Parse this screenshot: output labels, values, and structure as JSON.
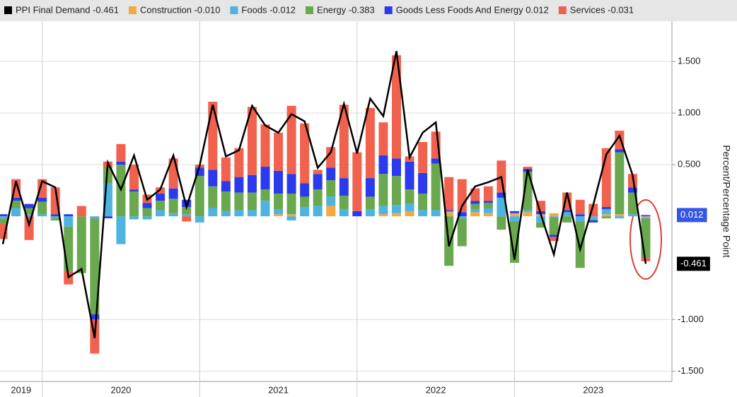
{
  "chart_data": {
    "type": "stacked-bar-line",
    "categories": [
      "2019",
      "2019",
      "2019",
      "2020",
      "2020",
      "2020",
      "2020",
      "2020",
      "2020",
      "2020",
      "2020",
      "2020",
      "2020",
      "2020",
      "2020",
      "2021",
      "2021",
      "2021",
      "2021",
      "2021",
      "2021",
      "2021",
      "2021",
      "2021",
      "2021",
      "2021",
      "2021",
      "2022",
      "2022",
      "2022",
      "2022",
      "2022",
      "2022",
      "2022",
      "2022",
      "2022",
      "2022",
      "2022",
      "2022",
      "2023",
      "2023",
      "2023",
      "2023",
      "2023",
      "2023",
      "2023",
      "2023",
      "2023",
      "2023",
      "2023"
    ],
    "line": {
      "name": "PPI Final Demand -0.461",
      "color": "#000000",
      "values": [
        -0.27,
        0.34,
        -0.08,
        0.34,
        0.28,
        -0.59,
        -0.51,
        -1.18,
        0.52,
        0.26,
        0.59,
        0.16,
        0.26,
        0.59,
        0.09,
        0.49,
        1.08,
        0.58,
        0.64,
        1.07,
        0.88,
        0.81,
        0.99,
        0.92,
        0.47,
        0.62,
        1.09,
        0.61,
        1.14,
        0.97,
        1.6,
        0.57,
        0.81,
        0.91,
        -0.29,
        0.1,
        0.29,
        0.33,
        0.38,
        -0.42,
        0.45,
        0.02,
        -0.37,
        0.23,
        -0.32,
        0.11,
        0.6,
        0.78,
        0.4,
        -0.46
      ]
    },
    "series": [
      {
        "name": "Construction -0.010",
        "color": "#f5a742",
        "values": [
          0,
          0,
          0,
          0,
          0,
          0,
          0,
          0,
          0,
          0,
          0,
          0,
          0,
          0,
          0,
          0,
          0,
          0,
          0,
          0,
          0,
          0.02,
          0.02,
          0,
          0,
          0.1,
          0,
          0,
          0,
          0.02,
          0.03,
          0.05,
          0,
          0,
          0.04,
          0,
          0.04,
          0.03,
          0,
          0.03,
          0.04,
          0.02,
          0.03,
          0,
          0,
          0,
          0.02,
          0.02,
          0,
          -0.01
        ]
      },
      {
        "name": "Foods -0.012",
        "color": "#4fb3e0",
        "values": [
          -0.02,
          0.08,
          0.02,
          0.02,
          -0.02,
          -0.1,
          0,
          -0.02,
          0.32,
          -0.27,
          -0.03,
          -0.03,
          0.06,
          0.03,
          0.02,
          -0.06,
          0.08,
          0.05,
          0.06,
          0.06,
          0.15,
          0.05,
          -0.04,
          0.09,
          0.1,
          0.09,
          0.07,
          0,
          0.07,
          0.08,
          0.08,
          0.07,
          0.06,
          0.06,
          0.01,
          -0.02,
          0.03,
          0.05,
          0.18,
          -0.05,
          0.02,
          -0.06,
          -0.01,
          0.04,
          -0.05,
          -0.03,
          0.05,
          -0.02,
          0.02,
          -0.012
        ]
      },
      {
        "name": "Energy -0.383",
        "color": "#6aa84f",
        "values": [
          -0.05,
          0.07,
          0.06,
          0.12,
          -0.02,
          -0.43,
          -0.55,
          -0.93,
          0.15,
          0.5,
          0.24,
          0.08,
          0.09,
          0.14,
          0.07,
          0.39,
          0.21,
          0.19,
          0.17,
          0.17,
          0.11,
          0.15,
          0.2,
          0.1,
          0.16,
          0.16,
          0.13,
          0,
          0.12,
          0.31,
          0.28,
          0.14,
          0.16,
          0.45,
          -0.48,
          -0.27,
          0.05,
          0.05,
          -0.13,
          -0.4,
          0.37,
          -0.05,
          -0.17,
          -0.06,
          -0.45,
          -0.01,
          -0.02,
          0.6,
          0.21,
          -0.383
        ]
      },
      {
        "name": "Goods Less Foods And Energy 0.012",
        "color": "#2b3aed",
        "values": [
          0.02,
          0.03,
          0.04,
          0.04,
          0.02,
          0.02,
          0,
          -0.05,
          -0.02,
          0.03,
          0.02,
          0.05,
          0.07,
          0.1,
          0.07,
          0.08,
          0.16,
          0.1,
          0.15,
          0.17,
          0.22,
          0.22,
          0.19,
          0.13,
          0.15,
          0.12,
          0.17,
          0.05,
          0.18,
          0.18,
          0.17,
          0.27,
          0.2,
          0.05,
          0.01,
          0.04,
          0.03,
          0.02,
          0.05,
          0.02,
          0.03,
          0.03,
          -0.02,
          0.02,
          0.02,
          -0.02,
          0.02,
          0.03,
          0.05,
          0.012
        ]
      },
      {
        "name": "Services -0.031",
        "color": "#f0624d",
        "values": [
          -0.15,
          0.18,
          -0.23,
          0.18,
          0.26,
          -0.13,
          0.1,
          -0.33,
          0.06,
          0.17,
          0.24,
          0.08,
          0.06,
          0.29,
          -0.05,
          0.03,
          0.66,
          0.23,
          0.28,
          0.66,
          0.41,
          0.37,
          0.66,
          0.58,
          0.04,
          0.2,
          0.71,
          0.57,
          0.68,
          0.32,
          1.0,
          0.05,
          0.3,
          0.26,
          0.32,
          0.32,
          0.12,
          0.14,
          0.31,
          0,
          0.02,
          0.1,
          -0.04,
          0.17,
          0.14,
          0.12,
          0.57,
          0.18,
          0.13,
          -0.031
        ]
      }
    ],
    "ylim": [
      -1.6,
      1.89
    ],
    "yticks": [
      {
        "value": -1.5,
        "label": "-1.500"
      },
      {
        "value": -1.0,
        "label": "-1.000"
      },
      {
        "value": 0.5,
        "label": "0.500"
      },
      {
        "value": 1.0,
        "label": "1.000"
      },
      {
        "value": 1.5,
        "label": "1.500"
      }
    ],
    "y_axis_label": "Percent/Percentage Point",
    "annotations": [
      "0.012",
      "-0.461"
    ],
    "grid": true
  }
}
